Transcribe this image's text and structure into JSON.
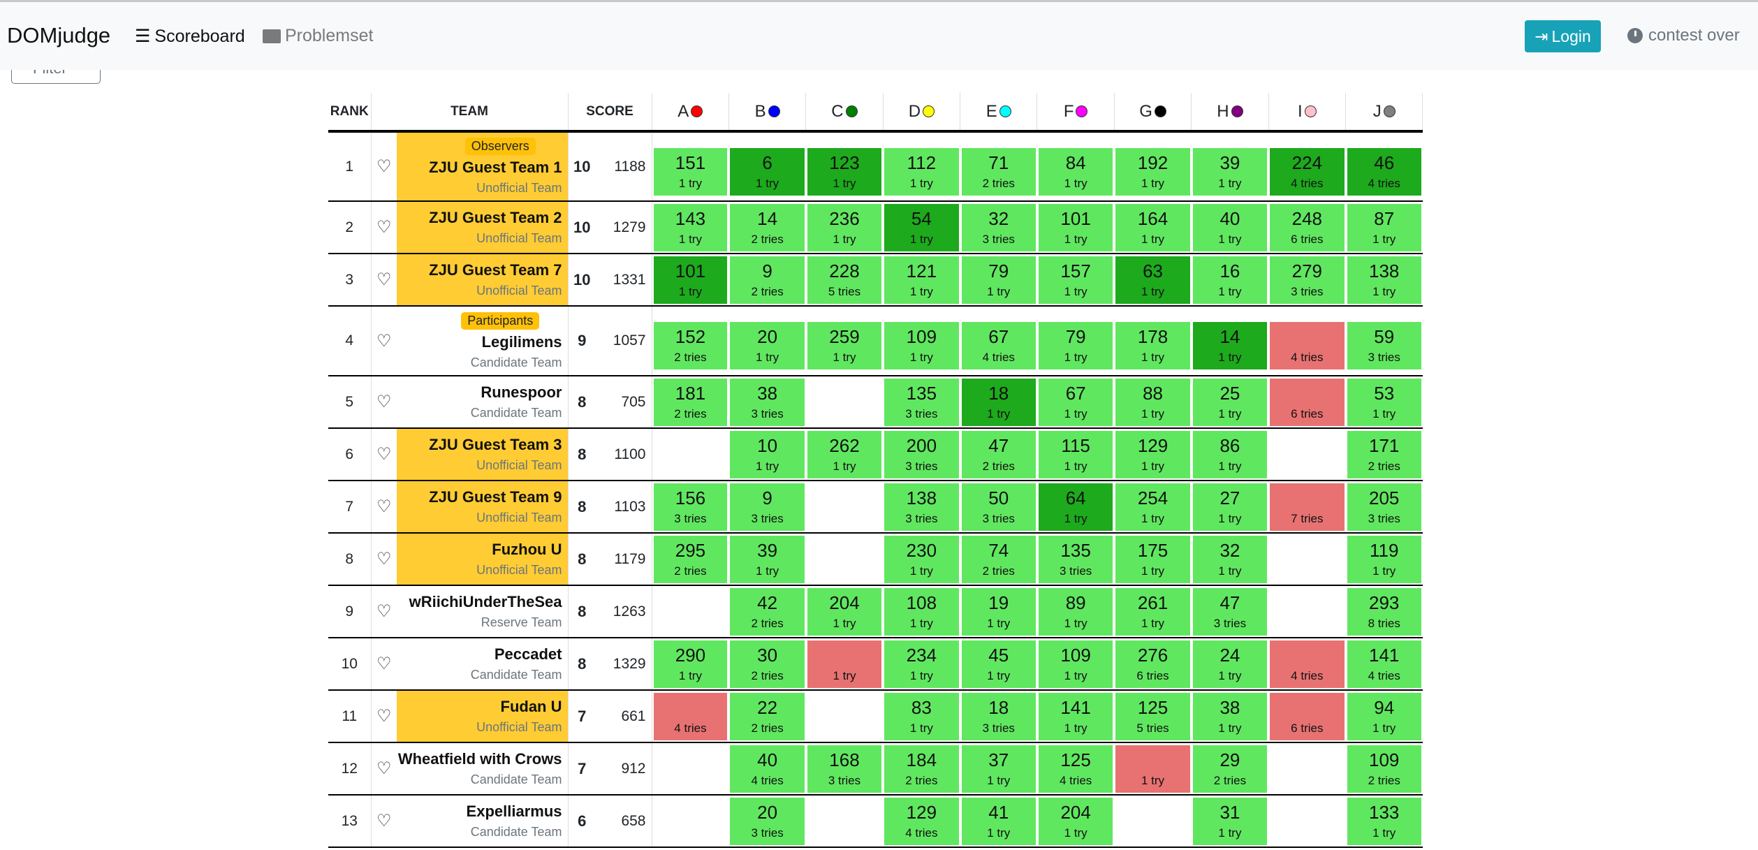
{
  "nav": {
    "brand": "DOMjudge",
    "scoreboard": "Scoreboard",
    "problemset": "Problemset",
    "login": "Login",
    "status": "contest over",
    "filter": "Filter"
  },
  "headers": {
    "rank": "RANK",
    "team": "TEAM",
    "score": "SCORE"
  },
  "problems": [
    {
      "label": "A",
      "color": "#ff0000"
    },
    {
      "label": "B",
      "color": "#0000ff"
    },
    {
      "label": "C",
      "color": "#008000"
    },
    {
      "label": "D",
      "color": "#ffff00"
    },
    {
      "label": "E",
      "color": "#00ffff"
    },
    {
      "label": "F",
      "color": "#ff00ff"
    },
    {
      "label": "G",
      "color": "#000000"
    },
    {
      "label": "H",
      "color": "#800080"
    },
    {
      "label": "I",
      "color": "#ffc0cb"
    },
    {
      "label": "J",
      "color": "#808080"
    }
  ],
  "colors": {
    "solved": "#60e760",
    "first": "#1daa1d",
    "failed": "#e87272",
    "unofficial": "#ffcc33"
  },
  "rows": [
    {
      "rank": "1",
      "badge": "Observers",
      "name": "ZJU Guest Team 1",
      "type": "Unofficial Team",
      "unofficial": true,
      "solved": "10",
      "penalty": "1188",
      "cells": [
        "151|1 try|s",
        "6|1 try|f",
        "123|1 try|f",
        "112|1 try|s",
        "71|2 tries|s",
        "84|1 try|s",
        "192|1 try|s",
        "39|1 try|s",
        "224|4 tries|f",
        "46|4 tries|f"
      ]
    },
    {
      "rank": "2",
      "name": "ZJU Guest Team 2",
      "type": "Unofficial Team",
      "unofficial": true,
      "solved": "10",
      "penalty": "1279",
      "cells": [
        "143|1 try|s",
        "14|2 tries|s",
        "236|1 try|s",
        "54|1 try|f",
        "32|3 tries|s",
        "101|1 try|s",
        "164|1 try|s",
        "40|1 try|s",
        "248|6 tries|s",
        "87|1 try|s"
      ]
    },
    {
      "rank": "3",
      "name": "ZJU Guest Team 7",
      "type": "Unofficial Team",
      "unofficial": true,
      "solved": "10",
      "penalty": "1331",
      "cells": [
        "101|1 try|f",
        "9|2 tries|s",
        "228|5 tries|s",
        "121|1 try|s",
        "79|1 try|s",
        "157|1 try|s",
        "63|1 try|f",
        "16|1 try|s",
        "279|3 tries|s",
        "138|1 try|s"
      ]
    },
    {
      "rank": "4",
      "badge": "Participants",
      "name": "Legilimens",
      "type": "Candidate Team",
      "unofficial": false,
      "solved": "9",
      "penalty": "1057",
      "cells": [
        "152|2 tries|s",
        "20|1 try|s",
        "259|1 try|s",
        "109|1 try|s",
        "67|4 tries|s",
        "79|1 try|s",
        "178|1 try|s",
        "14|1 try|f",
        "|4 tries|x",
        "59|3 tries|s"
      ]
    },
    {
      "rank": "5",
      "name": "Runespoor",
      "type": "Candidate Team",
      "unofficial": false,
      "solved": "8",
      "penalty": "705",
      "cells": [
        "181|2 tries|s",
        "38|3 tries|s",
        "||e",
        "135|3 tries|s",
        "18|1 try|f",
        "67|1 try|s",
        "88|1 try|s",
        "25|1 try|s",
        "|6 tries|x",
        "53|1 try|s"
      ]
    },
    {
      "rank": "6",
      "name": "ZJU Guest Team 3",
      "type": "Unofficial Team",
      "unofficial": true,
      "solved": "8",
      "penalty": "1100",
      "cells": [
        "||e",
        "10|1 try|s",
        "262|1 try|s",
        "200|3 tries|s",
        "47|2 tries|s",
        "115|1 try|s",
        "129|1 try|s",
        "86|1 try|s",
        "||e",
        "171|2 tries|s"
      ]
    },
    {
      "rank": "7",
      "name": "ZJU Guest Team 9",
      "type": "Unofficial Team",
      "unofficial": true,
      "solved": "8",
      "penalty": "1103",
      "cells": [
        "156|3 tries|s",
        "9|3 tries|s",
        "||e",
        "138|3 tries|s",
        "50|3 tries|s",
        "64|1 try|f",
        "254|1 try|s",
        "27|1 try|s",
        "|7 tries|x",
        "205|3 tries|s"
      ]
    },
    {
      "rank": "8",
      "name": "Fuzhou U",
      "type": "Unofficial Team",
      "unofficial": true,
      "solved": "8",
      "penalty": "1179",
      "cells": [
        "295|2 tries|s",
        "39|1 try|s",
        "||e",
        "230|1 try|s",
        "74|2 tries|s",
        "135|3 tries|s",
        "175|1 try|s",
        "32|1 try|s",
        "||e",
        "119|1 try|s"
      ]
    },
    {
      "rank": "9",
      "name": "wRiichiUnderTheSea",
      "type": "Reserve Team",
      "unofficial": false,
      "solved": "8",
      "penalty": "1263",
      "cells": [
        "||e",
        "42|2 tries|s",
        "204|1 try|s",
        "108|1 try|s",
        "19|1 try|s",
        "89|1 try|s",
        "261|1 try|s",
        "47|3 tries|s",
        "||e",
        "293|8 tries|s"
      ]
    },
    {
      "rank": "10",
      "name": "Peccadet",
      "type": "Candidate Team",
      "unofficial": false,
      "solved": "8",
      "penalty": "1329",
      "cells": [
        "290|1 try|s",
        "30|2 tries|s",
        "|1 try|x",
        "234|1 try|s",
        "45|1 try|s",
        "109|1 try|s",
        "276|6 tries|s",
        "24|1 try|s",
        "|4 tries|x",
        "141|4 tries|s"
      ]
    },
    {
      "rank": "11",
      "name": "Fudan U",
      "type": "Unofficial Team",
      "unofficial": true,
      "solved": "7",
      "penalty": "661",
      "cells": [
        "|4 tries|x",
        "22|2 tries|s",
        "||e",
        "83|1 try|s",
        "18|3 tries|s",
        "141|1 try|s",
        "125|5 tries|s",
        "38|1 try|s",
        "|6 tries|x",
        "94|1 try|s"
      ]
    },
    {
      "rank": "12",
      "name": "Wheatfield with Crows",
      "type": "Candidate Team",
      "unofficial": false,
      "solved": "7",
      "penalty": "912",
      "cells": [
        "||e",
        "40|4 tries|s",
        "168|3 tries|s",
        "184|2 tries|s",
        "37|1 try|s",
        "125|4 tries|s",
        "|1 try|x",
        "29|2 tries|s",
        "||e",
        "109|2 tries|s"
      ]
    },
    {
      "rank": "13",
      "name": "Expelliarmus",
      "type": "Candidate Team",
      "unofficial": false,
      "solved": "6",
      "penalty": "658",
      "cells": [
        "||e",
        "20|3 tries|s",
        "||e",
        "129|4 tries|s",
        "41|1 try|s",
        "204|1 try|s",
        "||e",
        "31|1 try|s",
        "||e",
        "133|1 try|s"
      ]
    }
  ]
}
